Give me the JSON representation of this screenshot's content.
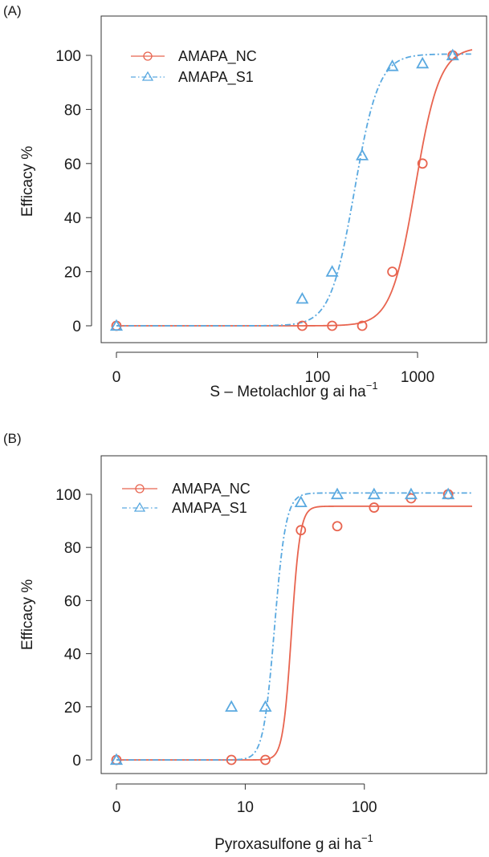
{
  "chart_data": [
    {
      "type": "line",
      "panel_label": "(A)",
      "xlabel": "S – Metolachlor g ai ha",
      "xlabel_sup": "−1",
      "ylabel": "Efficacy %",
      "x_scale": "log1p",
      "xticks": [
        {
          "value": 0,
          "label": "0"
        },
        {
          "value": 100,
          "label": "100"
        },
        {
          "value": 1000,
          "label": "1000"
        }
      ],
      "yticks": [
        {
          "value": 0,
          "label": "0"
        },
        {
          "value": 20,
          "label": "20"
        },
        {
          "value": 40,
          "label": "40"
        },
        {
          "value": 60,
          "label": "60"
        },
        {
          "value": 80,
          "label": "80"
        },
        {
          "value": 100,
          "label": "100"
        }
      ],
      "xlim": [
        0,
        3500
      ],
      "ylim": [
        -6,
        112
      ],
      "legend_position": "top-left",
      "series": [
        {
          "name": "AMAPA_NC",
          "color": "#e8644f",
          "marker": "circle",
          "line_style": "solid",
          "x": [
            0,
            70,
            140,
            280,
            560,
            1120,
            2240
          ],
          "y": [
            0,
            0,
            0,
            0,
            20,
            60,
            100
          ],
          "curve": {
            "model": "log-logistic",
            "upper": 103,
            "ed50": 950,
            "slope": 3.6
          }
        },
        {
          "name": "AMAPA_S1",
          "color": "#5aa9e0",
          "marker": "triangle",
          "line_style": "dashdot",
          "x": [
            0,
            70,
            140,
            280,
            560,
            1120,
            2240
          ],
          "y": [
            0,
            10,
            20,
            63,
            96,
            97,
            100
          ],
          "curve": {
            "model": "log-logistic",
            "upper": 100.5,
            "ed50": 235,
            "slope": 3.6
          }
        }
      ]
    },
    {
      "type": "line",
      "panel_label": "(B)",
      "xlabel": "Pyroxasulfone g ai ha",
      "xlabel_sup": "−1",
      "ylabel": "Efficacy %",
      "x_scale": "log1p",
      "xticks": [
        {
          "value": 0,
          "label": "0"
        },
        {
          "value": 10,
          "label": "10"
        },
        {
          "value": 100,
          "label": "100"
        }
      ],
      "yticks": [
        {
          "value": 0,
          "label": "0"
        },
        {
          "value": 20,
          "label": "20"
        },
        {
          "value": 40,
          "label": "40"
        },
        {
          "value": 60,
          "label": "60"
        },
        {
          "value": 80,
          "label": "80"
        },
        {
          "value": 100,
          "label": "100"
        }
      ],
      "xlim": [
        0,
        750
      ],
      "ylim": [
        -6,
        112
      ],
      "legend_position": "top-left",
      "series": [
        {
          "name": "AMAPA_NC",
          "color": "#e8644f",
          "marker": "circle",
          "line_style": "solid",
          "x": [
            0,
            7.5,
            15,
            30,
            60,
            120,
            240,
            480
          ],
          "y": [
            0,
            0,
            0,
            86.5,
            88,
            95,
            98.5,
            100
          ],
          "curve": {
            "model": "log-logistic",
            "upper": 95.5,
            "ed50": 25,
            "slope": 12
          }
        },
        {
          "name": "AMAPA_S1",
          "color": "#5aa9e0",
          "marker": "triangle",
          "line_style": "dashdot",
          "x": [
            0,
            7.5,
            15,
            30,
            60,
            120,
            240,
            480
          ],
          "y": [
            0,
            20,
            20,
            97,
            100,
            100,
            100,
            100
          ],
          "curve": {
            "model": "log-logistic",
            "upper": 100.5,
            "ed50": 18,
            "slope": 9
          }
        }
      ]
    }
  ]
}
